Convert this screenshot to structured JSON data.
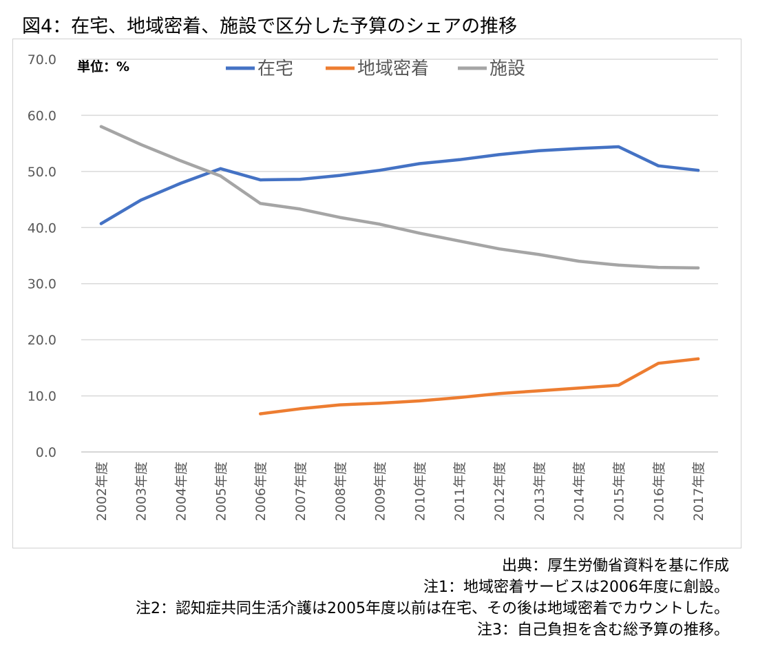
{
  "header": {
    "title": "図4：在宅、地域密着、施設で区分した予算のシェアの推移"
  },
  "chart_data": {
    "type": "line",
    "title": "",
    "unit_label": "単位：%",
    "categories": [
      "2002年度",
      "2003年度",
      "2004年度",
      "2005年度",
      "2006年度",
      "2007年度",
      "2008年度",
      "2009年度",
      "2010年度",
      "2011年度",
      "2012年度",
      "2013年度",
      "2014年度",
      "2015年度",
      "2016年度",
      "2017年度"
    ],
    "yticks": [
      "0.0",
      "10.0",
      "20.0",
      "30.0",
      "40.0",
      "50.0",
      "60.0",
      "70.0"
    ],
    "ylim": [
      0,
      70
    ],
    "grid": true,
    "legend_position": "top",
    "series": [
      {
        "name": "在宅",
        "color": "#4472c4",
        "values": [
          40.7,
          44.9,
          47.9,
          50.5,
          48.5,
          48.6,
          49.3,
          50.2,
          51.4,
          52.1,
          53.0,
          53.7,
          54.1,
          54.4,
          51.0,
          50.2
        ]
      },
      {
        "name": "地域密着",
        "color": "#ed7d31",
        "values": [
          null,
          null,
          null,
          null,
          6.8,
          7.7,
          8.4,
          8.7,
          9.1,
          9.7,
          10.4,
          10.9,
          11.4,
          11.9,
          15.8,
          16.6
        ]
      },
      {
        "name": "施設",
        "color": "#a5a5a5",
        "values": [
          58.0,
          54.8,
          51.9,
          49.2,
          44.3,
          43.3,
          41.8,
          40.6,
          39.0,
          37.6,
          36.2,
          35.2,
          34.0,
          33.3,
          32.9,
          32.8
        ]
      }
    ]
  },
  "notes": [
    "出典：厚生労働省資料を基に作成",
    "注1：地域密着サービスは2006年度に創設。",
    "注2：認知症共同生活介護は2005年度以前は在宅、その後は地域密着でカウントした。",
    "注3：自己負担を含む総予算の推移。"
  ]
}
